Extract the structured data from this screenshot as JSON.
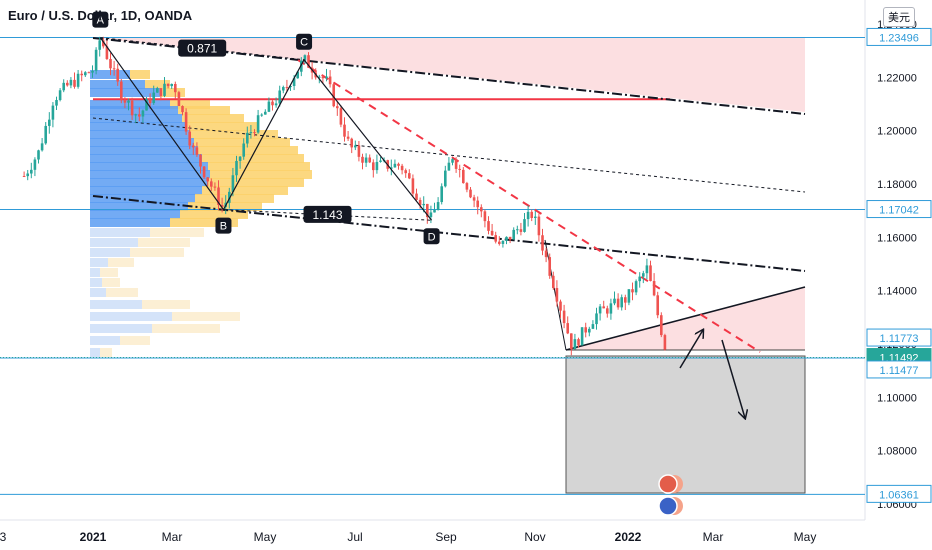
{
  "header": {
    "title": "Euro / U.S. Dollar, 1D, OANDA",
    "currency_button": "美元"
  },
  "chart_data": {
    "type": "line",
    "title": "Euro / U.S. Dollar, 1D, OANDA",
    "xlabel": "",
    "ylabel": "",
    "y_axis": {
      "range": [
        1.06,
        1.24
      ],
      "ticks": [
        "1.24000",
        "1.22000",
        "1.20000",
        "1.18000",
        "1.16000",
        "1.14000",
        "1.12000",
        "1.10000",
        "1.08000",
        "1.06000"
      ],
      "tick_values": [
        1.24,
        1.22,
        1.2,
        1.18,
        1.16,
        1.14,
        1.12,
        1.1,
        1.08,
        1.06
      ]
    },
    "x_axis": {
      "ticks": [
        "3",
        "2021",
        "Mar",
        "May",
        "Jul",
        "Sep",
        "Nov",
        "2022",
        "Mar",
        "May"
      ]
    },
    "price_labels": [
      {
        "text": "1.23496",
        "value": 1.23496,
        "style": "outline"
      },
      {
        "text": "1.17042",
        "value": 1.17042,
        "style": "outline"
      },
      {
        "text": "1.11773",
        "value": 1.11773,
        "style": "outline"
      },
      {
        "text": "1.11492",
        "value": 1.11492,
        "style": "filled"
      },
      {
        "text": "1.11477",
        "value": 1.11477,
        "style": "outline"
      },
      {
        "text": "1.06361",
        "value": 1.06361,
        "style": "outline"
      }
    ],
    "pattern_points": [
      {
        "label": "A",
        "date": "2021-01-06",
        "value": 1.2349
      },
      {
        "label": "B",
        "date": "2021-03-31",
        "value": 1.1704
      },
      {
        "label": "C",
        "date": "2021-05-25",
        "value": 1.2266
      },
      {
        "label": "D",
        "date": "2021-08-20",
        "value": 1.1664
      }
    ],
    "annotations": [
      {
        "text": "0.871",
        "type": "ratio"
      },
      {
        "text": "1.143",
        "type": "ratio"
      }
    ],
    "series": [
      {
        "type": "candlestick",
        "points": [
          [
            "2020-11-15",
            1.183
          ],
          [
            "2020-11-25",
            1.192
          ],
          [
            "2020-12-05",
            1.212
          ],
          [
            "2020-12-15",
            1.217
          ],
          [
            "2021-01-01",
            1.223
          ],
          [
            "2021-01-06",
            1.2349
          ],
          [
            "2021-01-20",
            1.214
          ],
          [
            "2021-02-01",
            1.205
          ],
          [
            "2021-02-10",
            1.213
          ],
          [
            "2021-02-25",
            1.218
          ],
          [
            "2021-03-10",
            1.193
          ],
          [
            "2021-03-31",
            1.1704
          ],
          [
            "2021-04-15",
            1.197
          ],
          [
            "2021-04-30",
            1.208
          ],
          [
            "2021-05-10",
            1.214
          ],
          [
            "2021-05-25",
            1.2266
          ],
          [
            "2021-06-10",
            1.218
          ],
          [
            "2021-06-25",
            1.194
          ],
          [
            "2021-07-10",
            1.187
          ],
          [
            "2021-07-30",
            1.187
          ],
          [
            "2021-08-20",
            1.1664
          ],
          [
            "2021-09-03",
            1.1909
          ],
          [
            "2021-09-20",
            1.172
          ],
          [
            "2021-10-05",
            1.156
          ],
          [
            "2021-10-28",
            1.169
          ],
          [
            "2021-11-10",
            1.145
          ],
          [
            "2021-11-24",
            1.1186
          ],
          [
            "2021-12-10",
            1.131
          ],
          [
            "2021-12-31",
            1.137
          ],
          [
            "2022-01-14",
            1.1483
          ],
          [
            "2022-01-28",
            1.1149
          ]
        ]
      }
    ],
    "grid": false,
    "legend": "none"
  }
}
